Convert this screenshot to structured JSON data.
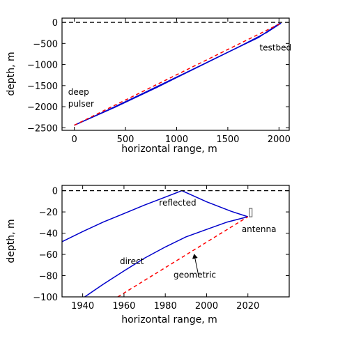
{
  "colors": {
    "ray": "#0000cc",
    "geometric": "#ff0000",
    "surface": "#000000",
    "axis": "#000000"
  },
  "chart_data": [
    {
      "type": "line",
      "xlabel": "horizontal range, m",
      "ylabel": "depth, m",
      "xlim": [
        -120,
        2100
      ],
      "ylim": [
        -2560,
        100
      ],
      "xticks": [
        0,
        500,
        1000,
        1500,
        2000
      ],
      "yticks": [
        0,
        -500,
        -1000,
        -1500,
        -2000,
        -2500
      ],
      "xtick_labels": [
        "0",
        "500",
        "1000",
        "1500",
        "2000"
      ],
      "ytick_labels": [
        "0",
        "−500",
        "−1000",
        "−1500",
        "−2000",
        "−2500"
      ],
      "series": [
        {
          "style": "blue-solid",
          "points": [
            [
              0,
              -2440
            ],
            [
              300,
              -2110
            ],
            [
              700,
              -1650
            ],
            [
              1100,
              -1180
            ],
            [
              1500,
              -710
            ],
            [
              1800,
              -360
            ],
            [
              2010,
              -15
            ]
          ]
        },
        {
          "style": "blue-solid",
          "points": [
            [
              0,
              -2440
            ],
            [
              400,
              -2010
            ],
            [
              800,
              -1550
            ],
            [
              1200,
              -1070
            ],
            [
              1600,
              -590
            ],
            [
              1880,
              -240
            ],
            [
              2020,
              -20
            ]
          ]
        },
        {
          "style": "red-dashed",
          "points": [
            [
              0,
              -2440
            ],
            [
              2020,
              -20
            ]
          ]
        },
        {
          "style": "black-dashed",
          "points": [
            [
              -120,
              0
            ],
            [
              2100,
              0
            ]
          ]
        }
      ],
      "annotations": [
        {
          "text": "deep",
          "x": -60,
          "y": -1720
        },
        {
          "text": "pulser",
          "x": -60,
          "y": -2000
        },
        {
          "text": "testbed",
          "x": 1810,
          "y": -670
        }
      ]
    },
    {
      "type": "line",
      "xlabel": "horizontal range, m",
      "ylabel": "depth, m",
      "xlim": [
        1930,
        2040
      ],
      "ylim": [
        -100,
        5
      ],
      "xticks": [
        1940,
        1960,
        1980,
        2000,
        2020
      ],
      "yticks": [
        0,
        -20,
        -40,
        -60,
        -80,
        -100
      ],
      "xtick_labels": [
        "1940",
        "1960",
        "1980",
        "2000",
        "2020"
      ],
      "ytick_labels": [
        "0",
        "−20",
        "−40",
        "−60",
        "−80",
        "−100"
      ],
      "series": [
        {
          "style": "blue-solid",
          "points": [
            [
              1930,
              -48
            ],
            [
              1940,
              -38.5
            ],
            [
              1950,
              -29.5
            ],
            [
              1960,
              -21.5
            ],
            [
              1970,
              -13.5
            ],
            [
              1980,
              -6
            ],
            [
              1988,
              0
            ]
          ]
        },
        {
          "style": "blue-solid",
          "points": [
            [
              1988,
              0
            ],
            [
              2000,
              -10.5
            ],
            [
              2012,
              -19.5
            ],
            [
              2020,
              -24.5
            ]
          ]
        },
        {
          "style": "blue-solid",
          "points": [
            [
              1941,
              -100
            ],
            [
              1950,
              -88
            ],
            [
              1960,
              -75.5
            ],
            [
              1970,
              -63.5
            ],
            [
              1980,
              -53
            ],
            [
              1990,
              -43.5
            ],
            [
              2000,
              -36.5
            ],
            [
              2010,
              -29.5
            ],
            [
              2020,
              -24.5
            ]
          ]
        },
        {
          "style": "red-dashed",
          "points": [
            [
              1957,
              -100
            ],
            [
              2020,
              -24.5
            ]
          ]
        },
        {
          "style": "black-dashed",
          "points": [
            [
              1930,
              0
            ],
            [
              2040,
              0
            ]
          ]
        }
      ],
      "annotations": [
        {
          "text": "reflected",
          "x": 1977,
          "y": -14
        },
        {
          "text": "antenna",
          "x": 2017,
          "y": -39
        },
        {
          "text": "direct",
          "x": 1958,
          "y": -69
        },
        {
          "text": "geometric",
          "x": 1984,
          "y": -82
        }
      ]
    }
  ]
}
